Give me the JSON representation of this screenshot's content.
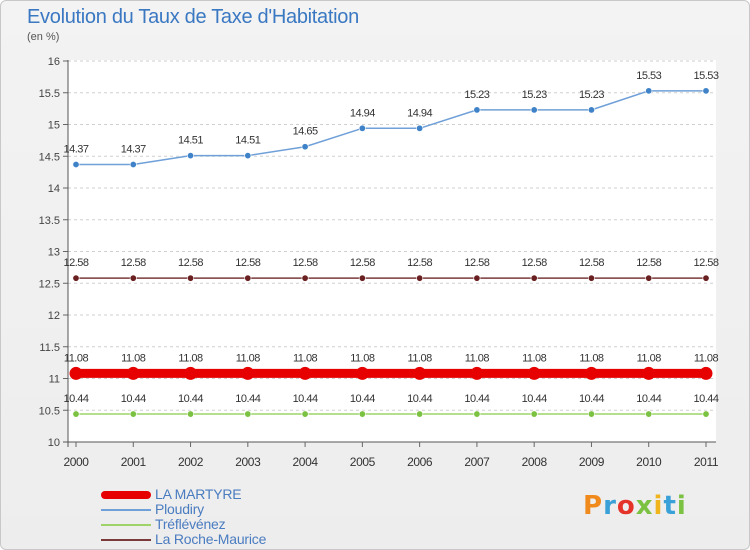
{
  "header": {
    "title": "Evolution du Taux de Taxe d'Habitation",
    "subtitle": "(en %)"
  },
  "chart_data": {
    "type": "line",
    "title": "Evolution du Taux de Taxe d'Habitation",
    "ylabel": "(en %)",
    "xlabel": "",
    "x": [
      "2000",
      "2001",
      "2002",
      "2003",
      "2004",
      "2005",
      "2006",
      "2007",
      "2008",
      "2009",
      "2010",
      "2011"
    ],
    "ylim": [
      10,
      16
    ],
    "yticks": [
      "10",
      "10.5",
      "11",
      "11.5",
      "12",
      "12.5",
      "13",
      "13.5",
      "14",
      "14.5",
      "15",
      "15.5",
      "16"
    ],
    "grid": "horizontal dashed",
    "legend_position": "bottom-left",
    "series": [
      {
        "name": "LA MARTYRE",
        "color": "#e60000",
        "values": [
          11.08,
          11.08,
          11.08,
          11.08,
          11.08,
          11.08,
          11.08,
          11.08,
          11.08,
          11.08,
          11.08,
          11.08
        ],
        "labels": [
          "11.08",
          "11.08",
          "11.08",
          "11.08",
          "11.08",
          "11.08",
          "11.08",
          "11.08",
          "11.08",
          "11.08",
          "11.08",
          "11.08"
        ]
      },
      {
        "name": "Ploudiry",
        "color": "#6fa0d8",
        "marker": "#3f82c8",
        "values": [
          14.37,
          14.37,
          14.51,
          14.51,
          14.65,
          14.94,
          14.94,
          15.23,
          15.23,
          15.23,
          15.53,
          15.53
        ],
        "labels": [
          "14.37",
          "14.37",
          "14.51",
          "14.51",
          "14.65",
          "14.94",
          "14.94",
          "15.23",
          "15.23",
          "15.23",
          "15.53",
          "15.53"
        ]
      },
      {
        "name": "Tréflévénez",
        "color": "#9ed36a",
        "marker": "#7cc242",
        "values": [
          10.44,
          10.44,
          10.44,
          10.44,
          10.44,
          10.44,
          10.44,
          10.44,
          10.44,
          10.44,
          10.44,
          10.44
        ],
        "labels": [
          "10.44",
          "10.44",
          "10.44",
          "10.44",
          "10.44",
          "10.44",
          "10.44",
          "10.44",
          "10.44",
          "10.44",
          "10.44",
          "10.44"
        ]
      },
      {
        "name": "La Roche-Maurice",
        "color": "#7a3a3a",
        "marker": "#6a2020",
        "values": [
          12.58,
          12.58,
          12.58,
          12.58,
          12.58,
          12.58,
          12.58,
          12.58,
          12.58,
          12.58,
          12.58,
          12.58
        ],
        "labels": [
          "12.58",
          "12.58",
          "12.58",
          "12.58",
          "12.58",
          "12.58",
          "12.58",
          "12.58",
          "12.58",
          "12.58",
          "12.58",
          "12.58"
        ]
      }
    ]
  },
  "logo": {
    "text": "Proxiti",
    "letters": [
      {
        "ch": "P",
        "color": "#f08a1c"
      },
      {
        "ch": "r",
        "color": "#3aa0d8"
      },
      {
        "ch": "o",
        "color": "#e5332a"
      },
      {
        "ch": "x",
        "color": "#7cc242"
      },
      {
        "ch": "i",
        "color": "#f0b41c"
      },
      {
        "ch": "t",
        "color": "#3aa0d8"
      },
      {
        "ch": "i",
        "color": "#7cc242"
      }
    ]
  }
}
